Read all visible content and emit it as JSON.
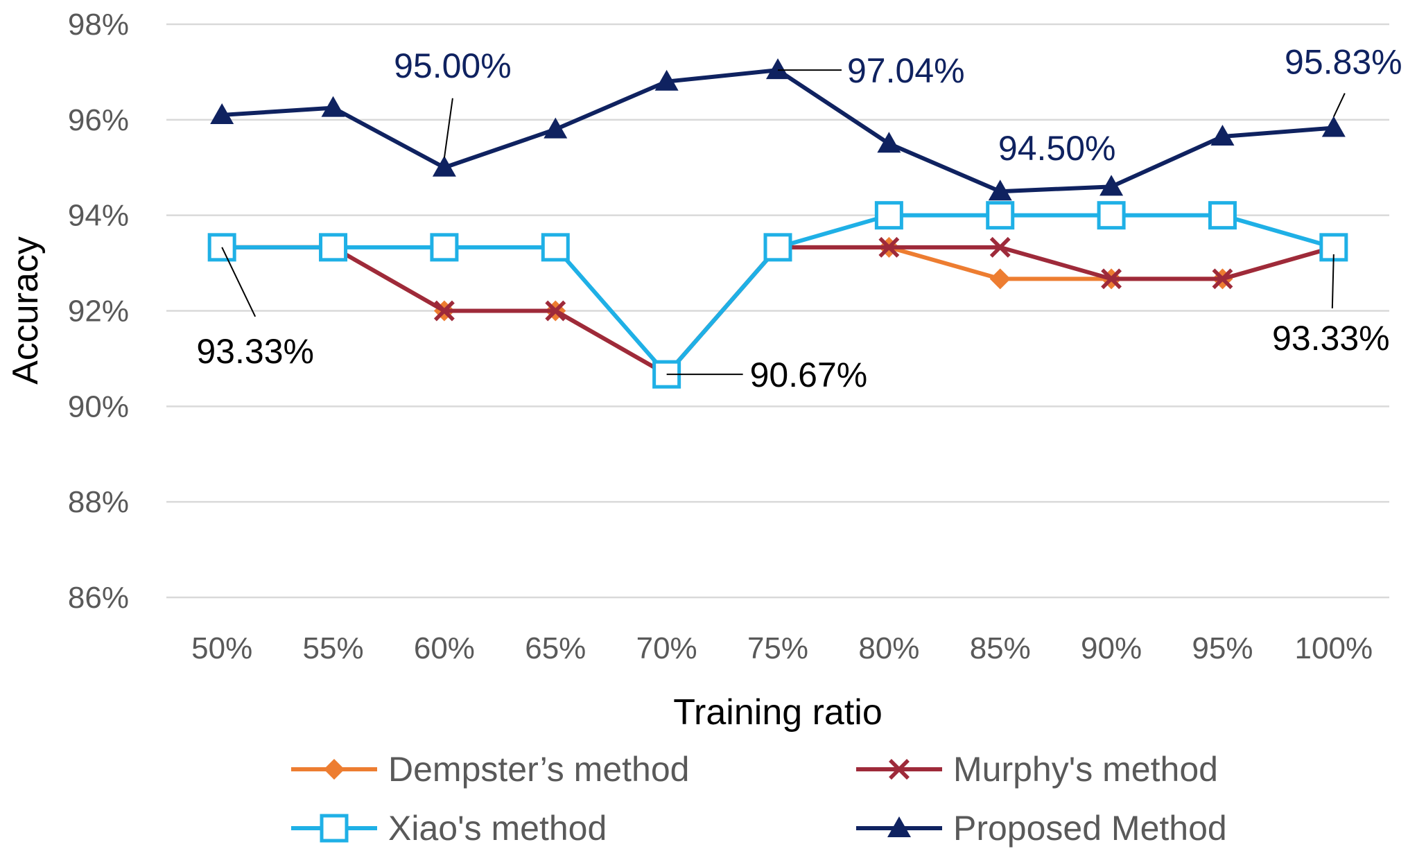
{
  "chart_data": {
    "type": "line",
    "title": "",
    "xlabel": "Training ratio",
    "ylabel": "Accuracy",
    "categories": [
      "50%",
      "55%",
      "60%",
      "65%",
      "70%",
      "75%",
      "80%",
      "85%",
      "90%",
      "95%",
      "100%"
    ],
    "ylim": [
      86,
      98
    ],
    "yticks": [
      86,
      88,
      90,
      92,
      94,
      96,
      98
    ],
    "ytick_labels": [
      "86%",
      "88%",
      "90%",
      "92%",
      "94%",
      "96%",
      "98%"
    ],
    "grid": true,
    "legend_position": "bottom",
    "series": [
      {
        "name": "Dempster’s method",
        "color": "#ED7D31",
        "marker": "diamond",
        "values": [
          93.33,
          93.33,
          92.0,
          92.0,
          90.67,
          93.33,
          93.33,
          92.67,
          92.67,
          92.67,
          93.33
        ]
      },
      {
        "name": "Murphy's method",
        "color": "#9E2A3A",
        "marker": "x",
        "values": [
          93.33,
          93.33,
          92.0,
          92.0,
          90.67,
          93.33,
          93.33,
          93.33,
          92.67,
          92.67,
          93.33
        ]
      },
      {
        "name": "Xiao's method",
        "color": "#1FB0E6",
        "marker": "square",
        "values": [
          93.33,
          93.33,
          93.33,
          93.33,
          90.67,
          93.33,
          94.0,
          94.0,
          94.0,
          94.0,
          93.33
        ]
      },
      {
        "name": "Proposed Method",
        "color": "#0F2260",
        "marker": "triangle",
        "values": [
          96.1,
          96.25,
          95.0,
          95.8,
          96.8,
          97.04,
          95.5,
          94.5,
          94.6,
          95.65,
          95.83
        ]
      }
    ],
    "annotations": [
      {
        "text": "95.00%",
        "category": "60%",
        "value": 95.0,
        "color": "#0F2260"
      },
      {
        "text": "97.04%",
        "category": "75%",
        "value": 97.04,
        "color": "#0F2260"
      },
      {
        "text": "94.50%",
        "category": "85%",
        "value": 94.5,
        "color": "#0F2260"
      },
      {
        "text": "95.83%",
        "category": "100%",
        "value": 95.83,
        "color": "#0F2260"
      },
      {
        "text": "93.33%",
        "category": "50%",
        "value": 93.33,
        "color": "#000000"
      },
      {
        "text": "90.67%",
        "category": "70%",
        "value": 90.67,
        "color": "#000000"
      },
      {
        "text": "93.33%",
        "category": "100%",
        "value": 93.33,
        "color": "#000000"
      }
    ]
  }
}
